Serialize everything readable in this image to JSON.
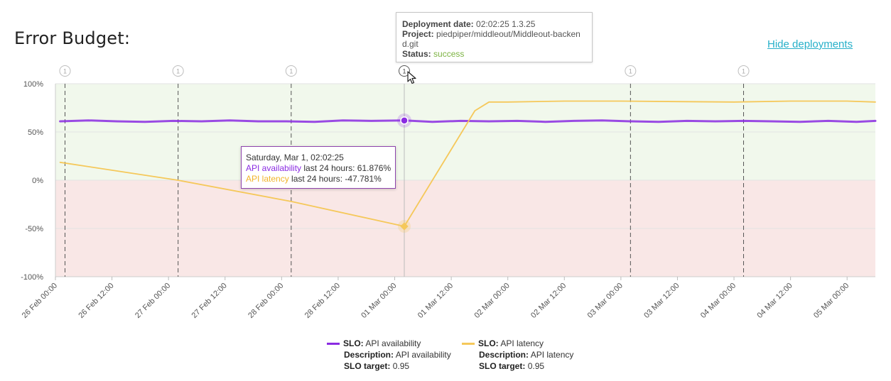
{
  "page": {
    "title": "Error Budget:",
    "hide_link": "Hide deployments"
  },
  "colors": {
    "availability": "#8a2be2",
    "latency": "#f5c85a",
    "good_band": "#f1f8ec",
    "bad_band": "#f9e7e6",
    "link": "#27b0c9",
    "success": "#7cb342"
  },
  "deployment_tooltip": {
    "date_label": "Deployment date:",
    "date_value": "02:02:25 1.3.25",
    "project_label": "Project:",
    "project_value": "piedpiper/middleout/Middleout-backen d.git",
    "status_label": "Status:",
    "status_value": "success"
  },
  "hover_tooltip": {
    "header": "Saturday, Mar 1, 02:02:25",
    "s1_name": "API availability",
    "s1_text": "last 24 hours: 61.876%",
    "s2_name": "API latency",
    "s2_text": "last 24 hours: -47.781%"
  },
  "legend": [
    {
      "slo_label": "SLO:",
      "slo_value": "API availability",
      "desc_label": "Description:",
      "desc_value": "API availability",
      "target_label": "SLO target:",
      "target_value": "0.95"
    },
    {
      "slo_label": "SLO:",
      "slo_value": "API latency",
      "desc_label": "Description:",
      "desc_value": "API latency",
      "target_label": "SLO target:",
      "target_value": "0.95"
    }
  ],
  "chart_data": {
    "type": "line",
    "title": "Error Budget:",
    "ylim": [
      -100,
      100
    ],
    "y_ticks": [
      "100%",
      "50%",
      "0%",
      "-50%",
      "-100%"
    ],
    "y_tick_values": [
      100,
      50,
      0,
      -50,
      -100
    ],
    "x_range": [
      "2025-02-26 00:00",
      "2025-03-05 06:00"
    ],
    "x_ticks": [
      "26 Feb 00:00",
      "26 Feb 12:00",
      "27 Feb 00:00",
      "27 Feb 12:00",
      "28 Feb 00:00",
      "28 Feb 12:00",
      "01 Mar 00:00",
      "01 Mar 12:00",
      "02 Mar 00:00",
      "02 Mar 12:00",
      "03 Mar 00:00",
      "03 Mar 12:00",
      "04 Mar 00:00",
      "04 Mar 12:00",
      "05 Mar 00:00"
    ],
    "deployments": [
      "2025-02-26 02:02",
      "2025-02-27 02:02",
      "2025-02-28 02:02",
      "2025-03-01 02:02",
      "2025-03-03 02:02",
      "2025-03-04 02:02"
    ],
    "deployment_marker_label": "1",
    "series": [
      {
        "name": "API availability",
        "x": [
          "2025-02-26 01:00",
          "2025-02-26 07:00",
          "2025-02-26 13:00",
          "2025-02-26 19:00",
          "2025-02-27 01:00",
          "2025-02-27 07:00",
          "2025-02-27 13:00",
          "2025-02-27 19:00",
          "2025-02-28 01:00",
          "2025-02-28 07:00",
          "2025-02-28 13:00",
          "2025-02-28 19:00",
          "2025-03-01 02:02",
          "2025-03-01 08:00",
          "2025-03-01 14:00",
          "2025-03-01 20:00",
          "2025-03-02 02:00",
          "2025-03-02 08:00",
          "2025-03-02 14:00",
          "2025-03-02 20:00",
          "2025-03-03 02:00",
          "2025-03-03 08:00",
          "2025-03-03 14:00",
          "2025-03-03 20:00",
          "2025-03-04 02:00",
          "2025-03-04 08:00",
          "2025-03-04 14:00",
          "2025-03-04 20:00",
          "2025-03-05 02:00",
          "2025-03-05 06:00"
        ],
        "y": [
          61,
          62,
          61,
          60.5,
          61.5,
          61,
          62,
          61,
          61,
          60.5,
          62,
          61.5,
          61.9,
          60.5,
          61.5,
          61,
          61.5,
          60.5,
          61.5,
          62,
          61,
          60.5,
          61.5,
          61,
          61.5,
          61,
          60.5,
          61.5,
          60.5,
          61.5
        ]
      },
      {
        "name": "API latency",
        "x": [
          "2025-02-26 01:00",
          "2025-02-27 02:00",
          "2025-02-28 02:00",
          "2025-03-01 02:02",
          "2025-03-01 17:00",
          "2025-03-01 20:00",
          "2025-03-02 00:00",
          "2025-03-02 12:00",
          "2025-03-03 00:00",
          "2025-03-03 12:00",
          "2025-03-04 00:00",
          "2025-03-04 12:00",
          "2025-03-05 00:00",
          "2025-03-05 06:00"
        ],
        "y": [
          18.5,
          0,
          -22,
          -47.8,
          72,
          81,
          81,
          82,
          82,
          81.5,
          81,
          82,
          82,
          81
        ]
      }
    ],
    "highlight_x": "2025-03-01 02:02",
    "grid": true,
    "legend_position": "bottom"
  }
}
